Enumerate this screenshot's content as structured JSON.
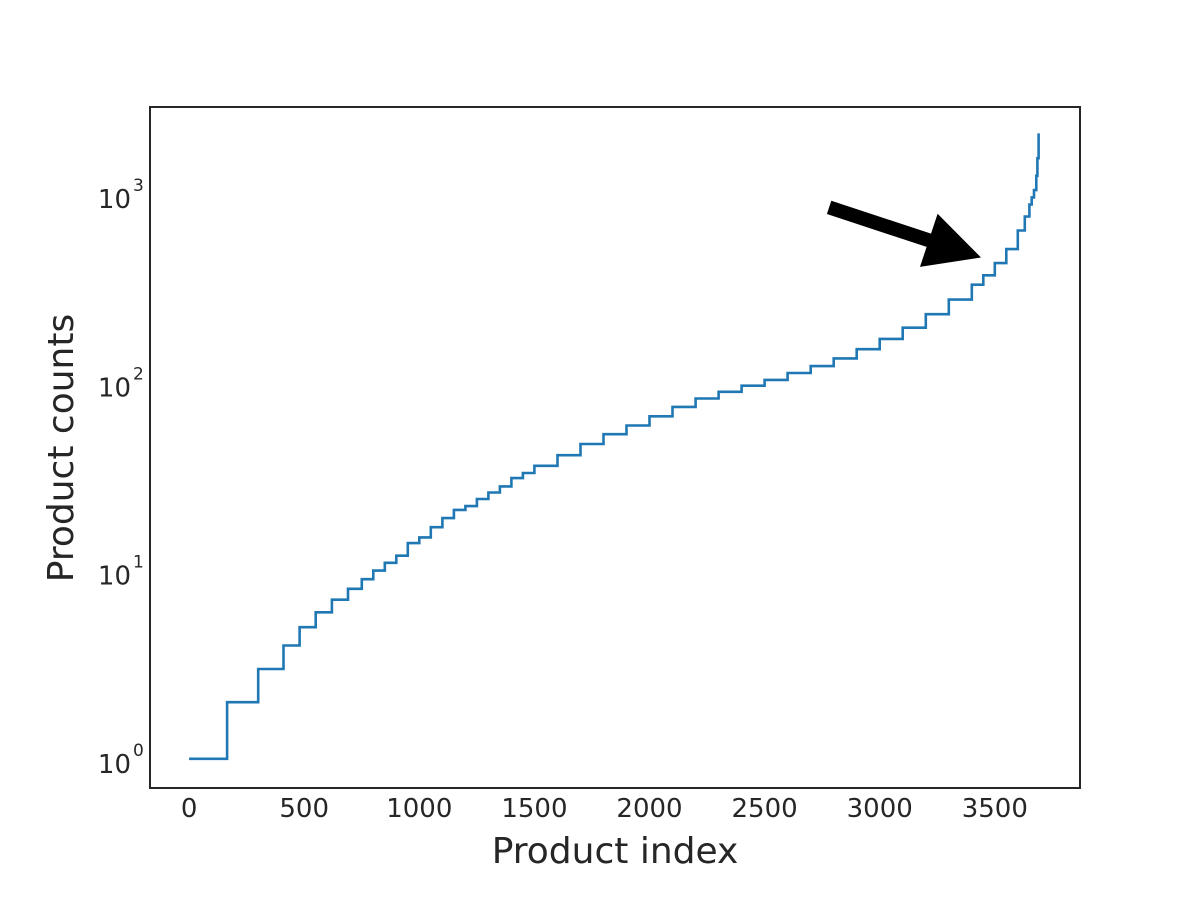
{
  "chart_data": {
    "type": "line",
    "title": "",
    "xlabel": "Product index",
    "ylabel": "Product counts",
    "xlim": [
      -170,
      3870
    ],
    "ylim": [
      0.7,
      2900
    ],
    "yscale": "log",
    "grid": false,
    "legend": "none",
    "x_ticks": [
      0,
      500,
      1000,
      1500,
      2000,
      2500,
      3000,
      3500
    ],
    "y_ticks": [
      {
        "value": 1,
        "base": "10",
        "exp": "0"
      },
      {
        "value": 10,
        "base": "10",
        "exp": "1"
      },
      {
        "value": 100,
        "base": "10",
        "exp": "2"
      },
      {
        "value": 1000,
        "base": "10",
        "exp": "3"
      }
    ],
    "series": [
      {
        "color": "#1f77b4",
        "step": true,
        "x": [
          0,
          165,
          300,
          410,
          480,
          550,
          620,
          690,
          750,
          800,
          850,
          900,
          950,
          1000,
          1050,
          1100,
          1150,
          1200,
          1250,
          1300,
          1350,
          1400,
          1450,
          1500,
          1600,
          1700,
          1800,
          1900,
          2000,
          2100,
          2200,
          2300,
          2400,
          2500,
          2600,
          2700,
          2800,
          2900,
          3000,
          3100,
          3200,
          3300,
          3400,
          3450,
          3500,
          3550,
          3600,
          3630,
          3650,
          3660,
          3670,
          3680,
          3685,
          3690
        ],
        "y": [
          1,
          2,
          3,
          4,
          5,
          6,
          7,
          8,
          9,
          10,
          11,
          12,
          14,
          15,
          17,
          19,
          21,
          22,
          24,
          26,
          28,
          31,
          33,
          36,
          41,
          47,
          53,
          59,
          66,
          74,
          82,
          89,
          96,
          103,
          112,
          122,
          134,
          150,
          170,
          195,
          230,
          275,
          330,
          370,
          430,
          510,
          640,
          760,
          880,
          960,
          1050,
          1250,
          1550,
          2100
        ]
      }
    ],
    "annotations": [
      {
        "type": "arrow",
        "color": "#000000",
        "from": {
          "x": 2780,
          "y": 850
        },
        "to": {
          "x": 3440,
          "y": 460
        }
      }
    ]
  }
}
